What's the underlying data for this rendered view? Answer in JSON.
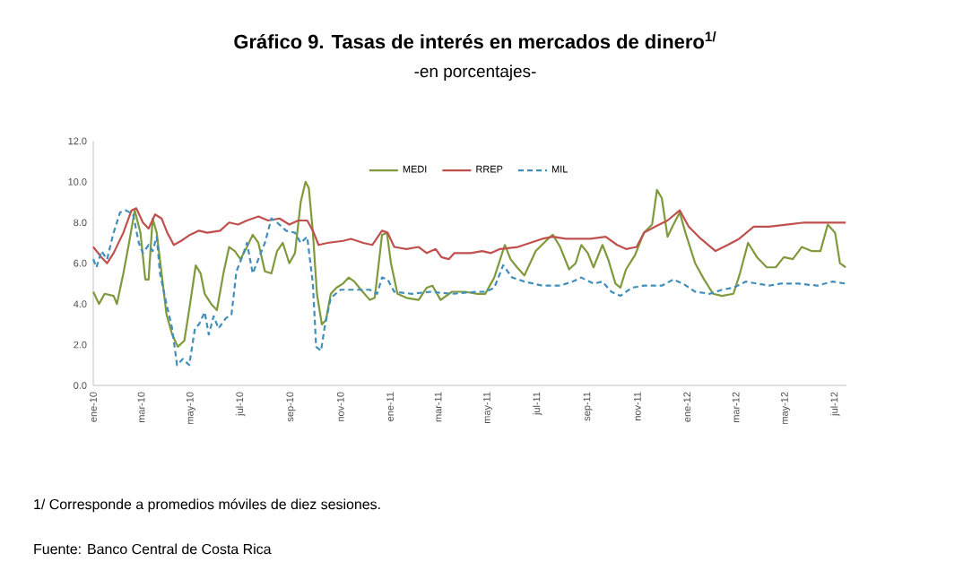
{
  "chart_data": {
    "type": "line",
    "title": "Gráfico 9. Tasas de interés en mercados de dinero$^{1/}$",
    "subtitle": "-en porcentajes-",
    "annotations": [
      "1/ Corresponde a promedios móviles de diez sesiones.",
      "Fuente: Banco Central de Costa Rica"
    ],
    "xlim": [
      "2010-01-01",
      "2012-07-15"
    ],
    "xticks": [
      {
        "value": "2010-01-01",
        "label": "ene-10"
      },
      {
        "value": "2010-03-01",
        "label": "mar-10"
      },
      {
        "value": "2010-05-01",
        "label": "may-10"
      },
      {
        "value": "2010-07-01",
        "label": "jul-10"
      },
      {
        "value": "2010-09-01",
        "label": "sep-10"
      },
      {
        "value": "2010-11-01",
        "label": "nov-10"
      },
      {
        "value": "2011-01-01",
        "label": "ene-11"
      },
      {
        "value": "2011-03-01",
        "label": "mar-11"
      },
      {
        "value": "2011-05-01",
        "label": "may-11"
      },
      {
        "value": "2011-07-01",
        "label": "jul-11"
      },
      {
        "value": "2011-09-01",
        "label": "sep-11"
      },
      {
        "value": "2011-11-01",
        "label": "nov-11"
      },
      {
        "value": "2012-01-01",
        "label": "ene-12"
      },
      {
        "value": "2012-03-01",
        "label": "mar-12"
      },
      {
        "value": "2012-05-01",
        "label": "may-12"
      },
      {
        "value": "2012-07-01",
        "label": "jul-12"
      }
    ],
    "ylim": [
      0,
      12
    ],
    "yticks": [
      {
        "value": 0,
        "label": "0.0"
      },
      {
        "value": 2,
        "label": "2.0"
      },
      {
        "value": 4,
        "label": "4.0"
      },
      {
        "value": 6,
        "label": "6.0"
      },
      {
        "value": 8,
        "label": "8.0"
      },
      {
        "value": 10,
        "label": "10.0"
      },
      {
        "value": 12,
        "label": "12.0"
      }
    ],
    "grid": false,
    "legend": "top",
    "marker": "none",
    "series": [
      {
        "name": "MEDI",
        "color": "#7f9a3c",
        "line_style": "solid",
        "x": [
          "2010-01-01",
          "2010-01-08",
          "2010-01-15",
          "2010-01-26",
          "2010-01-30",
          "2010-02-07",
          "2010-02-14",
          "2010-02-21",
          "2010-02-28",
          "2010-03-06",
          "2010-03-10",
          "2010-03-15",
          "2010-03-20",
          "2010-03-26",
          "2010-04-01",
          "2010-04-08",
          "2010-04-15",
          "2010-04-23",
          "2010-04-30",
          "2010-05-07",
          "2010-05-13",
          "2010-05-18",
          "2010-05-26",
          "2010-06-02",
          "2010-06-10",
          "2010-06-17",
          "2010-06-24",
          "2010-07-01",
          "2010-07-09",
          "2010-07-16",
          "2010-07-23",
          "2010-07-31",
          "2010-08-08",
          "2010-08-15",
          "2010-08-22",
          "2010-08-30",
          "2010-09-06",
          "2010-09-13",
          "2010-09-19",
          "2010-09-23",
          "2010-09-28",
          "2010-10-03",
          "2010-10-09",
          "2010-10-14",
          "2010-10-20",
          "2010-10-27",
          "2010-11-04",
          "2010-11-11",
          "2010-11-18",
          "2010-11-26",
          "2010-12-07",
          "2010-12-13",
          "2010-12-18",
          "2010-12-22",
          "2010-12-28",
          "2011-01-02",
          "2011-01-10",
          "2011-01-21",
          "2011-02-05",
          "2011-02-15",
          "2011-02-22",
          "2011-03-04",
          "2011-03-18",
          "2011-04-03",
          "2011-04-17",
          "2011-04-28",
          "2011-05-09",
          "2011-05-22",
          "2011-05-29",
          "2011-06-06",
          "2011-06-15",
          "2011-06-29",
          "2011-07-14",
          "2011-07-20",
          "2011-07-29",
          "2011-08-09",
          "2011-08-17",
          "2011-08-24",
          "2011-09-01",
          "2011-09-08",
          "2011-09-19",
          "2011-09-26",
          "2011-10-05",
          "2011-10-11",
          "2011-10-18",
          "2011-10-29",
          "2011-11-09",
          "2011-11-19",
          "2011-11-25",
          "2011-12-01",
          "2011-12-08",
          "2011-12-14",
          "2011-12-23",
          "2011-12-30",
          "2012-01-11",
          "2012-01-22",
          "2012-02-02",
          "2012-02-13",
          "2012-02-27",
          "2012-03-06",
          "2012-03-16",
          "2012-03-27",
          "2012-04-08",
          "2012-04-19",
          "2012-04-29",
          "2012-05-10",
          "2012-05-21",
          "2012-06-02",
          "2012-06-13",
          "2012-06-22",
          "2012-07-01",
          "2012-07-07",
          "2012-07-14"
        ],
        "values": [
          4.6,
          4.0,
          4.5,
          4.4,
          4.0,
          5.5,
          7.0,
          8.6,
          7.5,
          5.2,
          5.2,
          8.2,
          7.5,
          5.5,
          3.5,
          2.5,
          1.9,
          2.2,
          4.0,
          5.9,
          5.5,
          4.5,
          4.0,
          3.7,
          5.5,
          6.8,
          6.6,
          6.2,
          6.8,
          7.4,
          7.0,
          5.6,
          5.5,
          6.6,
          7.0,
          6.0,
          6.5,
          9.0,
          10.0,
          9.7,
          7.5,
          4.5,
          3.0,
          3.2,
          4.5,
          4.8,
          5.0,
          5.3,
          5.1,
          4.7,
          4.2,
          4.3,
          6.0,
          7.4,
          7.5,
          6.0,
          4.5,
          4.3,
          4.2,
          4.8,
          4.9,
          4.2,
          4.6,
          4.6,
          4.5,
          4.5,
          5.3,
          6.9,
          6.2,
          5.8,
          5.4,
          6.6,
          7.2,
          7.4,
          6.8,
          5.7,
          6.0,
          6.9,
          6.5,
          5.8,
          6.9,
          6.2,
          5.0,
          4.8,
          5.7,
          6.4,
          7.5,
          7.9,
          9.6,
          9.2,
          7.3,
          7.8,
          8.5,
          7.5,
          6.0,
          5.2,
          4.5,
          4.4,
          4.5,
          5.5,
          7.0,
          6.3,
          5.8,
          5.8,
          6.3,
          6.2,
          6.8,
          6.6,
          6.6,
          7.9,
          7.5,
          6.0,
          5.8
        ]
      },
      {
        "name": "RREP",
        "color": "#c0504d",
        "line_style": "solid",
        "x": [
          "2010-01-01",
          "2010-01-11",
          "2010-01-18",
          "2010-01-26",
          "2010-02-07",
          "2010-02-17",
          "2010-02-23",
          "2010-03-03",
          "2010-03-10",
          "2010-03-18",
          "2010-03-26",
          "2010-04-02",
          "2010-04-10",
          "2010-04-19",
          "2010-04-30",
          "2010-05-11",
          "2010-05-21",
          "2010-06-06",
          "2010-06-17",
          "2010-06-28",
          "2010-07-09",
          "2010-07-23",
          "2010-08-04",
          "2010-08-18",
          "2010-08-30",
          "2010-09-10",
          "2010-09-21",
          "2010-09-28",
          "2010-10-05",
          "2010-10-16",
          "2010-11-04",
          "2010-11-14",
          "2010-11-29",
          "2010-12-10",
          "2010-12-22",
          "2010-12-29",
          "2011-01-06",
          "2011-01-21",
          "2011-02-05",
          "2011-02-15",
          "2011-02-26",
          "2011-03-05",
          "2011-03-14",
          "2011-03-21",
          "2011-04-10",
          "2011-04-24",
          "2011-05-05",
          "2011-05-16",
          "2011-06-07",
          "2011-06-22",
          "2011-07-07",
          "2011-07-20",
          "2011-08-05",
          "2011-09-04",
          "2011-09-23",
          "2011-10-07",
          "2011-10-18",
          "2011-10-31",
          "2011-11-09",
          "2011-11-23",
          "2011-12-08",
          "2011-12-23",
          "2012-01-03",
          "2012-01-18",
          "2012-02-05",
          "2012-02-20",
          "2012-03-05",
          "2012-03-23",
          "2012-04-11",
          "2012-05-02",
          "2012-05-24",
          "2012-06-20",
          "2012-07-14"
        ],
        "values": [
          6.8,
          6.3,
          6.0,
          6.5,
          7.5,
          8.6,
          8.7,
          8.0,
          7.7,
          8.4,
          8.2,
          7.5,
          6.9,
          7.1,
          7.4,
          7.6,
          7.5,
          7.6,
          8.0,
          7.9,
          8.1,
          8.3,
          8.1,
          8.2,
          7.9,
          8.1,
          8.1,
          7.6,
          6.9,
          7.0,
          7.1,
          7.2,
          7.0,
          6.9,
          7.6,
          7.5,
          6.8,
          6.7,
          6.8,
          6.5,
          6.7,
          6.3,
          6.2,
          6.5,
          6.5,
          6.6,
          6.5,
          6.7,
          6.8,
          7.0,
          7.2,
          7.3,
          7.2,
          7.2,
          7.3,
          6.9,
          6.7,
          6.8,
          7.5,
          7.8,
          8.1,
          8.6,
          7.8,
          7.2,
          6.6,
          6.9,
          7.2,
          7.8,
          7.8,
          7.9,
          8.0,
          8.0,
          8.0
        ]
      },
      {
        "name": "MIL",
        "color": "#3f8fba",
        "line_style": "dashed",
        "x": [
          "2010-01-01",
          "2010-01-05",
          "2010-01-11",
          "2010-01-18",
          "2010-01-26",
          "2010-02-03",
          "2010-02-10",
          "2010-02-19",
          "2010-02-26",
          "2010-03-03",
          "2010-03-10",
          "2010-03-15",
          "2010-03-20",
          "2010-03-24",
          "2010-04-01",
          "2010-04-08",
          "2010-04-14",
          "2010-04-21",
          "2010-04-29",
          "2010-05-06",
          "2010-05-11",
          "2010-05-18",
          "2010-05-23",
          "2010-05-29",
          "2010-06-04",
          "2010-06-13",
          "2010-06-20",
          "2010-06-26",
          "2010-07-03",
          "2010-07-09",
          "2010-07-16",
          "2010-07-23",
          "2010-07-31",
          "2010-08-08",
          "2010-08-15",
          "2010-08-26",
          "2010-09-06",
          "2010-09-13",
          "2010-09-21",
          "2010-09-28",
          "2010-10-02",
          "2010-10-08",
          "2010-10-13",
          "2010-10-20",
          "2010-11-01",
          "2010-11-22",
          "2010-12-07",
          "2010-12-16",
          "2010-12-22",
          "2010-12-29",
          "2011-01-06",
          "2011-01-28",
          "2011-02-19",
          "2011-03-18",
          "2011-04-17",
          "2011-04-28",
          "2011-05-09",
          "2011-05-20",
          "2011-05-31",
          "2011-06-15",
          "2011-07-07",
          "2011-07-29",
          "2011-08-13",
          "2011-08-24",
          "2011-09-08",
          "2011-09-19",
          "2011-09-30",
          "2011-10-11",
          "2011-10-25",
          "2011-11-09",
          "2011-12-01",
          "2011-12-15",
          "2011-12-27",
          "2012-01-11",
          "2012-01-29",
          "2012-02-13",
          "2012-02-27",
          "2012-03-13",
          "2012-03-27",
          "2012-04-11",
          "2012-04-25",
          "2012-05-17",
          "2012-06-09",
          "2012-06-28",
          "2012-07-14"
        ],
        "values": [
          6.2,
          5.8,
          6.6,
          6.2,
          7.5,
          8.5,
          8.6,
          8.4,
          7.0,
          6.5,
          6.9,
          6.6,
          7.3,
          5.5,
          4.0,
          2.8,
          1.0,
          1.3,
          1.0,
          2.8,
          3.0,
          3.6,
          2.5,
          3.4,
          2.8,
          3.3,
          3.5,
          5.6,
          6.3,
          7.0,
          5.5,
          6.2,
          7.0,
          8.2,
          8.0,
          7.6,
          7.5,
          7.0,
          7.3,
          5.0,
          1.9,
          1.7,
          3.0,
          4.3,
          4.7,
          4.7,
          4.7,
          4.5,
          5.3,
          5.2,
          4.6,
          4.5,
          4.6,
          4.5,
          4.6,
          4.6,
          4.8,
          5.9,
          5.3,
          5.1,
          4.9,
          4.9,
          5.1,
          5.3,
          5.0,
          5.1,
          4.6,
          4.4,
          4.8,
          4.9,
          4.9,
          5.2,
          5.0,
          4.6,
          4.5,
          4.7,
          4.8,
          5.1,
          5.0,
          4.9,
          5.0,
          5.0,
          4.9,
          5.1,
          5.0
        ]
      }
    ]
  }
}
